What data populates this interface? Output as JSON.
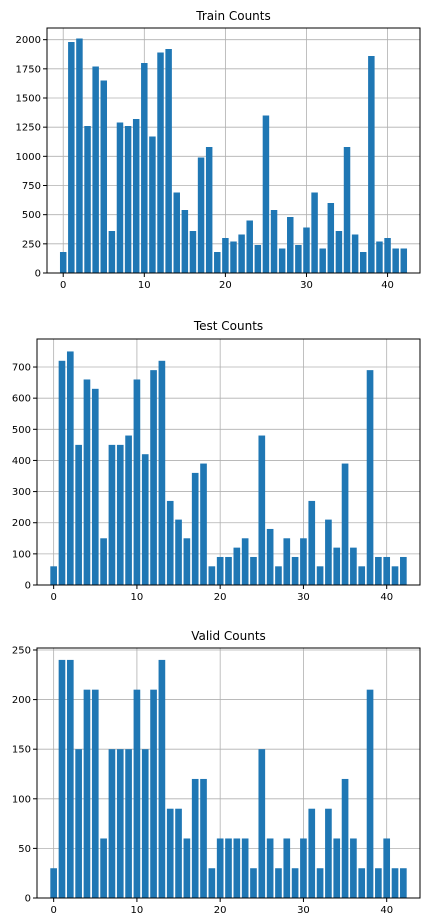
{
  "chart_data": [
    {
      "type": "bar",
      "title": "Train Counts",
      "xlabel": "",
      "ylabel": "",
      "grid": true,
      "xlim": [
        -2,
        44
      ],
      "ylim": [
        0,
        2100
      ],
      "xticks": [
        0,
        10,
        20,
        30,
        40
      ],
      "xtick_labels": [
        "0",
        "10",
        "20",
        "30",
        "40"
      ],
      "yticks": [
        0,
        250,
        500,
        750,
        1000,
        1250,
        1500,
        1750,
        2000
      ],
      "ytick_labels": [
        "0",
        "250",
        "500",
        "750",
        "1000",
        "1250",
        "1500",
        "1750",
        "2000"
      ],
      "color": "#1f77b4",
      "series": [
        {
          "x": [
            0,
            1,
            2,
            3,
            4,
            5,
            6,
            7,
            8,
            9,
            10,
            11,
            12,
            13,
            14,
            15,
            16,
            17,
            18,
            19,
            20,
            21,
            22,
            23,
            24,
            25,
            26,
            27,
            28,
            29,
            30,
            31,
            32,
            33,
            34,
            35,
            36,
            37,
            38,
            39,
            40,
            41,
            42
          ],
          "values": [
            180,
            1980,
            2010,
            1260,
            1770,
            1650,
            360,
            1290,
            1260,
            1320,
            1800,
            1170,
            1890,
            1920,
            690,
            540,
            360,
            990,
            1080,
            180,
            300,
            270,
            330,
            450,
            240,
            1350,
            540,
            210,
            480,
            240,
            390,
            690,
            210,
            600,
            360,
            1080,
            330,
            180,
            1860,
            270,
            300,
            210,
            210
          ]
        }
      ]
    },
    {
      "type": "bar",
      "title": "Test Counts",
      "xlabel": "",
      "ylabel": "",
      "grid": true,
      "xlim": [
        -2,
        44
      ],
      "ylim": [
        0,
        790
      ],
      "xticks": [
        0,
        10,
        20,
        30,
        40
      ],
      "xtick_labels": [
        "0",
        "10",
        "20",
        "30",
        "40"
      ],
      "yticks": [
        0,
        100,
        200,
        300,
        400,
        500,
        600,
        700
      ],
      "ytick_labels": [
        "0",
        "100",
        "200",
        "300",
        "400",
        "500",
        "600",
        "700"
      ],
      "color": "#1f77b4",
      "series": [
        {
          "x": [
            0,
            1,
            2,
            3,
            4,
            5,
            6,
            7,
            8,
            9,
            10,
            11,
            12,
            13,
            14,
            15,
            16,
            17,
            18,
            19,
            20,
            21,
            22,
            23,
            24,
            25,
            26,
            27,
            28,
            29,
            30,
            31,
            32,
            33,
            34,
            35,
            36,
            37,
            38,
            39,
            40,
            41,
            42
          ],
          "values": [
            60,
            720,
            750,
            450,
            660,
            630,
            150,
            450,
            450,
            480,
            660,
            420,
            690,
            720,
            270,
            210,
            150,
            360,
            390,
            60,
            90,
            90,
            120,
            150,
            90,
            480,
            180,
            60,
            150,
            90,
            150,
            270,
            60,
            210,
            120,
            390,
            120,
            60,
            690,
            90,
            90,
            60,
            90
          ]
        }
      ]
    },
    {
      "type": "bar",
      "title": "Valid Counts",
      "xlabel": "",
      "ylabel": "",
      "grid": true,
      "xlim": [
        -2,
        44
      ],
      "ylim": [
        0,
        252
      ],
      "xticks": [
        0,
        10,
        20,
        30,
        40
      ],
      "xtick_labels": [
        "0",
        "10",
        "20",
        "30",
        "40"
      ],
      "yticks": [
        0,
        50,
        100,
        150,
        200,
        250
      ],
      "ytick_labels": [
        "0",
        "50",
        "100",
        "150",
        "200",
        "250"
      ],
      "color": "#1f77b4",
      "series": [
        {
          "x": [
            0,
            1,
            2,
            3,
            4,
            5,
            6,
            7,
            8,
            9,
            10,
            11,
            12,
            13,
            14,
            15,
            16,
            17,
            18,
            19,
            20,
            21,
            22,
            23,
            24,
            25,
            26,
            27,
            28,
            29,
            30,
            31,
            32,
            33,
            34,
            35,
            36,
            37,
            38,
            39,
            40,
            41,
            42
          ],
          "values": [
            30,
            240,
            240,
            150,
            210,
            210,
            60,
            150,
            150,
            150,
            210,
            150,
            210,
            240,
            90,
            90,
            60,
            120,
            120,
            30,
            60,
            60,
            60,
            60,
            30,
            150,
            60,
            30,
            60,
            30,
            60,
            90,
            30,
            90,
            60,
            120,
            60,
            30,
            210,
            30,
            60,
            30,
            30
          ]
        }
      ]
    }
  ]
}
